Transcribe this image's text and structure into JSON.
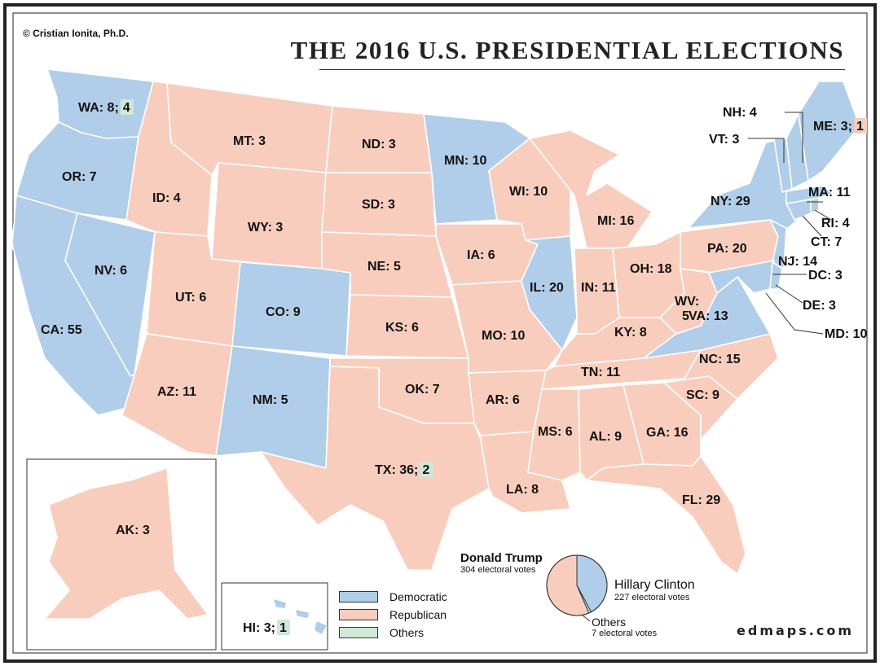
{
  "copyright": "© Cristian Ionita, Ph.D.",
  "title": "THE 2016 U.S. PRESIDENTIAL ELECTIONS",
  "website": "edmaps.com",
  "colors": {
    "democratic": "#b0cde9",
    "republican": "#f8cdbd",
    "others": "#cfe8d8",
    "border": "#ffffff",
    "frame": "#222222"
  },
  "legend": {
    "democratic": "Democratic",
    "republican": "Republican",
    "others": "Others"
  },
  "results": {
    "trump_name": "Donald Trump",
    "trump_votes": "304 electoral votes",
    "clinton_name": "Hillary Clinton",
    "clinton_votes": "227 electoral votes",
    "others_name": "Others",
    "others_votes": "7 electoral votes"
  },
  "chart_data": {
    "type": "pie",
    "slices": [
      {
        "label": "Donald Trump",
        "value": 304,
        "party": "republican"
      },
      {
        "label": "Hillary Clinton",
        "value": 227,
        "party": "democratic"
      },
      {
        "label": "Others",
        "value": 7,
        "party": "others"
      }
    ]
  },
  "states": [
    {
      "abbr": "WA",
      "label": "WA: 8;",
      "extra": "4",
      "extra_party": "others",
      "party": "democratic"
    },
    {
      "abbr": "OR",
      "label": "OR: 7",
      "party": "democratic"
    },
    {
      "abbr": "CA",
      "label": "CA: 55",
      "party": "democratic"
    },
    {
      "abbr": "NV",
      "label": "NV: 6",
      "party": "democratic"
    },
    {
      "abbr": "ID",
      "label": "ID: 4",
      "party": "republican"
    },
    {
      "abbr": "MT",
      "label": "MT: 3",
      "party": "republican"
    },
    {
      "abbr": "WY",
      "label": "WY: 3",
      "party": "republican"
    },
    {
      "abbr": "UT",
      "label": "UT: 6",
      "party": "republican"
    },
    {
      "abbr": "AZ",
      "label": "AZ: 11",
      "party": "republican"
    },
    {
      "abbr": "CO",
      "label": "CO: 9",
      "party": "democratic"
    },
    {
      "abbr": "NM",
      "label": "NM: 5",
      "party": "democratic"
    },
    {
      "abbr": "ND",
      "label": "ND: 3",
      "party": "republican"
    },
    {
      "abbr": "SD",
      "label": "SD: 3",
      "party": "republican"
    },
    {
      "abbr": "NE",
      "label": "NE: 5",
      "party": "republican"
    },
    {
      "abbr": "KS",
      "label": "KS: 6",
      "party": "republican"
    },
    {
      "abbr": "OK",
      "label": "OK: 7",
      "party": "republican"
    },
    {
      "abbr": "TX",
      "label": "TX: 36;",
      "extra": "2",
      "extra_party": "others",
      "party": "republican"
    },
    {
      "abbr": "MN",
      "label": "MN: 10",
      "party": "democratic"
    },
    {
      "abbr": "IA",
      "label": "IA: 6",
      "party": "republican"
    },
    {
      "abbr": "MO",
      "label": "MO: 10",
      "party": "republican"
    },
    {
      "abbr": "AR",
      "label": "AR: 6",
      "party": "republican"
    },
    {
      "abbr": "LA",
      "label": "LA: 8",
      "party": "republican"
    },
    {
      "abbr": "WI",
      "label": "WI: 10",
      "party": "republican"
    },
    {
      "abbr": "IL",
      "label": "IL: 20",
      "party": "democratic"
    },
    {
      "abbr": "MI",
      "label": "MI: 16",
      "party": "republican"
    },
    {
      "abbr": "IN",
      "label": "IN: 11",
      "party": "republican"
    },
    {
      "abbr": "OH",
      "label": "OH: 18",
      "party": "republican"
    },
    {
      "abbr": "KY",
      "label": "KY: 8",
      "party": "republican"
    },
    {
      "abbr": "TN",
      "label": "TN: 11",
      "party": "republican"
    },
    {
      "abbr": "MS",
      "label": "MS: 6",
      "party": "republican"
    },
    {
      "abbr": "AL",
      "label": "AL: 9",
      "party": "republican"
    },
    {
      "abbr": "GA",
      "label": "GA: 16",
      "party": "republican"
    },
    {
      "abbr": "FL",
      "label": "FL: 29",
      "party": "republican"
    },
    {
      "abbr": "SC",
      "label": "SC: 9",
      "party": "republican"
    },
    {
      "abbr": "NC",
      "label": "NC: 15",
      "party": "republican"
    },
    {
      "abbr": "VA",
      "label": "VA: 13",
      "party": "democratic"
    },
    {
      "abbr": "WV",
      "label": "WV:",
      "label2": "5",
      "party": "republican"
    },
    {
      "abbr": "PA",
      "label": "PA: 20",
      "party": "republican"
    },
    {
      "abbr": "NY",
      "label": "NY: 29",
      "party": "democratic"
    },
    {
      "abbr": "NJ",
      "label": "NJ: 14",
      "party": "democratic"
    },
    {
      "abbr": "MD",
      "label": "MD: 10",
      "party": "democratic"
    },
    {
      "abbr": "DE",
      "label": "DE: 3",
      "party": "democratic"
    },
    {
      "abbr": "DC",
      "label": "DC: 3",
      "party": "democratic"
    },
    {
      "abbr": "CT",
      "label": "CT: 7",
      "party": "democratic"
    },
    {
      "abbr": "RI",
      "label": "RI: 4",
      "party": "democratic"
    },
    {
      "abbr": "MA",
      "label": "MA: 11",
      "party": "democratic"
    },
    {
      "abbr": "VT",
      "label": "VT: 3",
      "party": "democratic"
    },
    {
      "abbr": "NH",
      "label": "NH: 4",
      "party": "democratic"
    },
    {
      "abbr": "ME",
      "label": "ME: 3;",
      "extra": "1",
      "extra_party": "republican",
      "party": "democratic"
    },
    {
      "abbr": "AK",
      "label": "AK: 3",
      "party": "republican"
    },
    {
      "abbr": "HI",
      "label": "HI: 3;",
      "extra": "1",
      "extra_party": "others",
      "party": "democratic"
    }
  ]
}
